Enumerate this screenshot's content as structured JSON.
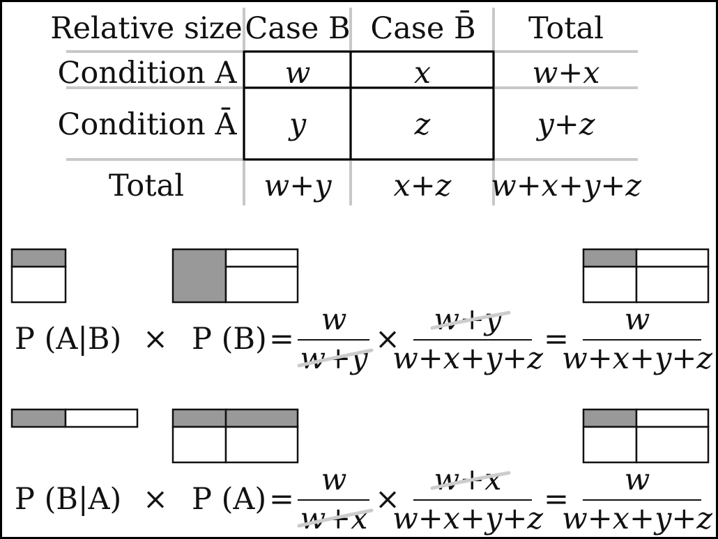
{
  "table": {
    "corner": "Relative size",
    "col_headers": [
      "Case B",
      "Case B̄",
      "Total"
    ],
    "row_headers": [
      "Condition A",
      "Condition Ā",
      "Total"
    ],
    "cells": [
      [
        "w",
        "x",
        "w+x"
      ],
      [
        "y",
        "z",
        "y+z"
      ],
      [
        "w+y",
        "x+z",
        "w+x+y+z"
      ]
    ]
  },
  "equation1": {
    "lhs1": "P (A|B)",
    "times": "×",
    "lhs2": "P (B)",
    "equals": "=",
    "frac1_num": "w",
    "frac1_den": "w+y",
    "frac2_num": "w+y",
    "frac2_den": "w+x+y+z",
    "result_num": "w",
    "result_den": "w+x+y+z"
  },
  "equation2": {
    "lhs1": "P (B|A)",
    "times": "×",
    "lhs2": "P (A)",
    "equals": "=",
    "frac1_num": "w",
    "frac1_den": "w+x",
    "frac2_num": "w+x",
    "frac2_den": "w+x+y+z",
    "result_num": "w",
    "result_den": "w+x+y+z"
  },
  "colors": {
    "shade": "#999999",
    "grid": "#c8c8c8",
    "strike": "#cccccc",
    "ink": "#111111"
  }
}
